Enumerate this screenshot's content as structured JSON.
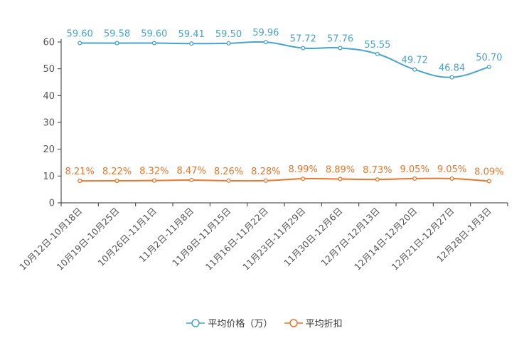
{
  "chart_data": {
    "type": "line",
    "title": "",
    "xlabel": "",
    "ylabel": "",
    "ylim": [
      0,
      60
    ],
    "yticks": [
      0,
      10,
      20,
      30,
      40,
      50,
      60
    ],
    "categories": [
      "10月12日-10月18日",
      "10月19日-10月25日",
      "10月26日-11月1日",
      "11月2日-11月8日",
      "11月9日-11月15日",
      "11月16日-11月22日",
      "11月23日-11月29日",
      "11月30日-12月6日",
      "12月7日-12月13日",
      "12月14日-12月20日",
      "12月21日-12月27日",
      "12月28日-1月3日"
    ],
    "series": [
      {
        "name": "平均价格（万）",
        "color": "#4aa3c8",
        "values": [
          59.6,
          59.58,
          59.6,
          59.41,
          59.5,
          59.96,
          57.72,
          57.76,
          55.55,
          49.72,
          46.84,
          50.7
        ],
        "labels": [
          "59.60",
          "59.58",
          "59.60",
          "59.41",
          "59.50",
          "59.96",
          "57.72",
          "57.76",
          "55.55",
          "49.72",
          "46.84",
          "50.70"
        ]
      },
      {
        "name": "平均折扣",
        "color": "#e8762d",
        "values": [
          8.21,
          8.22,
          8.32,
          8.47,
          8.26,
          8.28,
          8.99,
          8.89,
          8.73,
          9.05,
          9.05,
          8.09
        ],
        "labels": [
          "8.21%",
          "8.22%",
          "8.32%",
          "8.47%",
          "8.26%",
          "8.28%",
          "8.99%",
          "8.89%",
          "8.73%",
          "9.05%",
          "9.05%",
          "8.09%"
        ]
      }
    ],
    "legend_position": "bottom-center",
    "grid": false
  }
}
